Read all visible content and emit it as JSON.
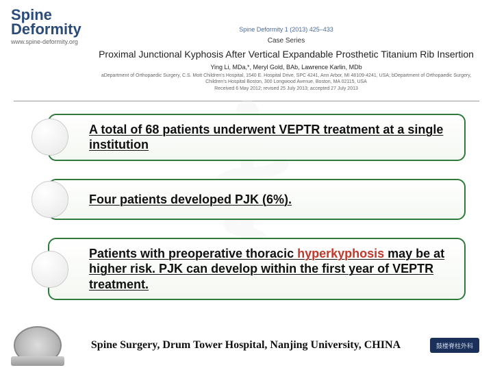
{
  "journal": {
    "name_line1": "Spine",
    "name_line2": "Deformity",
    "url": "www.spine-deformity.org",
    "citation": "Spine Deformity 1 (2013) 425–433",
    "article_type": "Case Series",
    "title": "Proximal Junctional Kyphosis After Vertical Expandable Prosthetic Titanium Rib Insertion",
    "authors": "Ying Li, MDa,*, Meryl Gold, BAb, Lawrence Karlin, MDb",
    "affiliations": "aDepartment of Orthopaedic Surgery, C.S. Mott Children's Hospital, 1540 E. Hospital Drive, SPC 4241, Ann Arbor, MI 48109-4241, USA; bDepartment of Orthopaedic Surgery, Children's Hospital Boston, 300 Longwood Avenue, Boston, MA 02115, USA",
    "dates": "Received 6 May 2012; revised 25 July 2013; accepted 27 July 2013"
  },
  "bullets": [
    {
      "text": "A total of 68 patients underwent VEPTR treatment at a single institution"
    },
    {
      "text": "Four patients developed PJK (6%)."
    },
    {
      "text_pre": "Patients with preoperative thoracic ",
      "highlight": "hyperkyphosis",
      "text_post": " may be at higher risk. PJK can develop within the first year of VEPTR treatment."
    }
  ],
  "footer": {
    "affiliation": "Spine Surgery, Drum Tower Hospital, Nanjing University, CHINA",
    "badge": "鼓楼脊柱外科"
  },
  "colors": {
    "box_border": "#2d7a3a",
    "highlight": "#c0392b",
    "journal_blue": "#2a4a7a"
  }
}
